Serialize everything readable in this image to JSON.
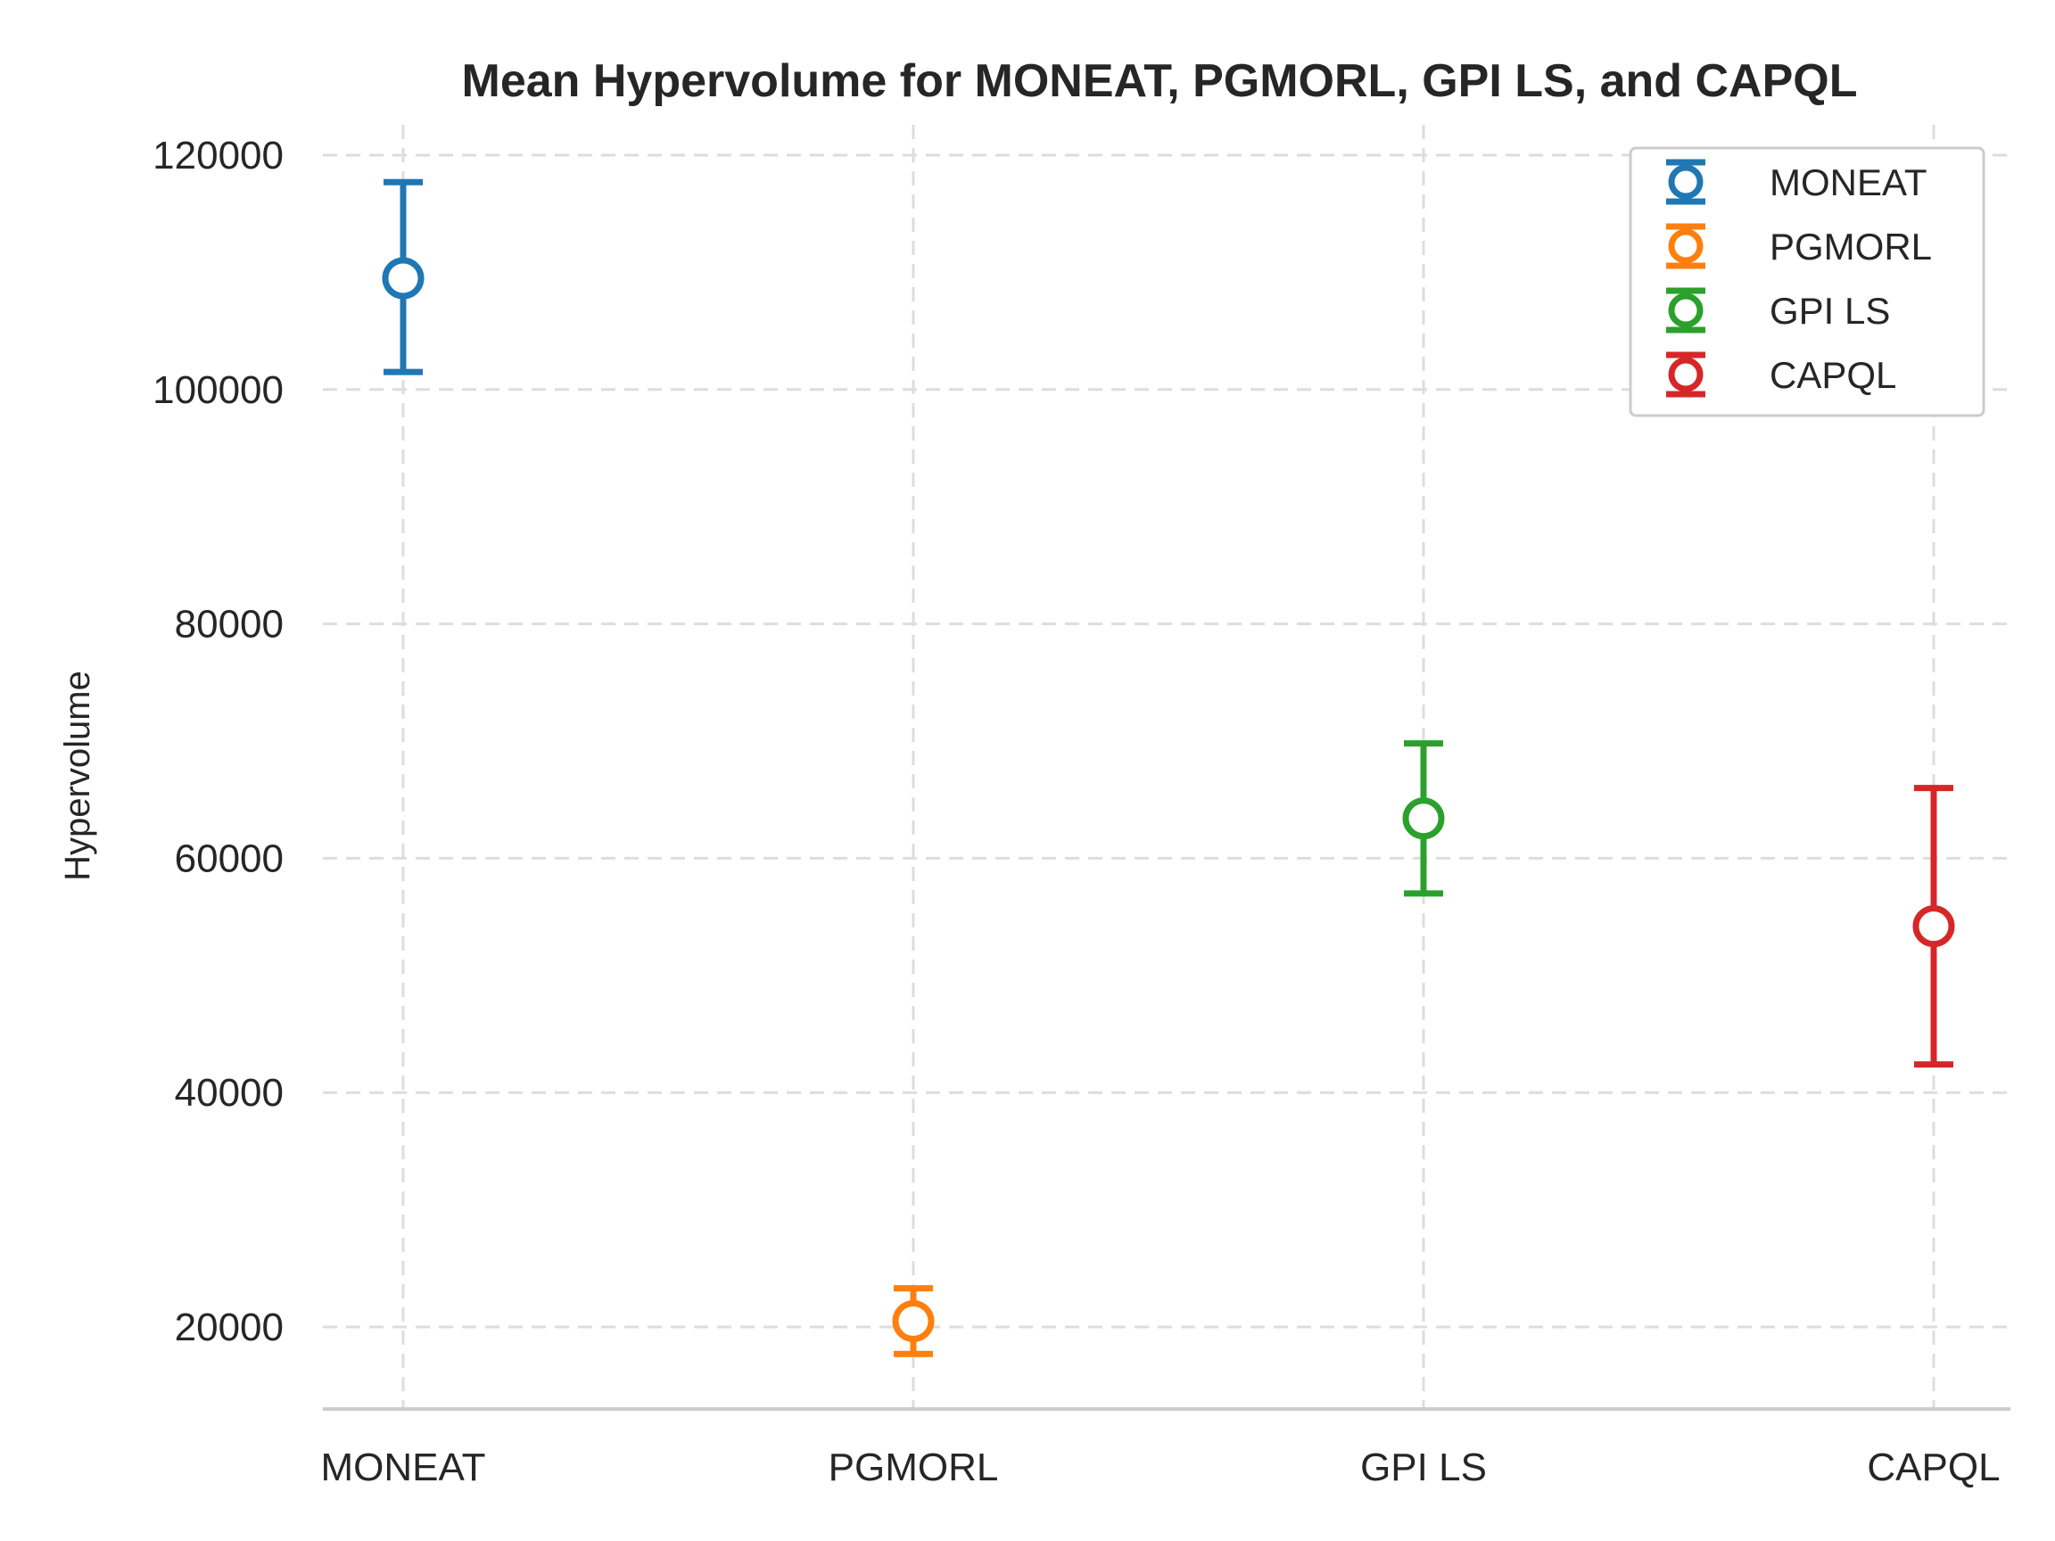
{
  "chart_data": {
    "type": "scatter",
    "title": "Mean Hypervolume for MONEAT, PGMORL, GPI LS, and CAPQL",
    "xlabel": "",
    "ylabel": "Hypervolume",
    "categories": [
      "MONEAT",
      "PGMORL",
      "GPI LS",
      "CAPQL"
    ],
    "y_ticks": [
      "20000",
      "40000",
      "60000",
      "80000",
      "100000",
      "120000"
    ],
    "y_tick_values": [
      20000,
      40000,
      60000,
      80000,
      100000,
      120000
    ],
    "ylim": [
      13000,
      124000
    ],
    "grid": true,
    "legend_position": "top-right",
    "marker": "open-circle-with-errorbar",
    "series": [
      {
        "name": "MONEAT",
        "category": "MONEAT",
        "mean": 109500,
        "err_low": 101500,
        "err_high": 117700,
        "color": "#1f77b4"
      },
      {
        "name": "PGMORL",
        "category": "PGMORL",
        "mean": 20500,
        "err_low": 17700,
        "err_high": 23300,
        "color": "#ff7f0e"
      },
      {
        "name": "GPI LS",
        "category": "GPI LS",
        "mean": 63400,
        "err_low": 57000,
        "err_high": 69800,
        "color": "#2ca02c"
      },
      {
        "name": "CAPQL",
        "category": "CAPQL",
        "mean": 54200,
        "err_low": 42400,
        "err_high": 66000,
        "color": "#d62728"
      }
    ]
  }
}
